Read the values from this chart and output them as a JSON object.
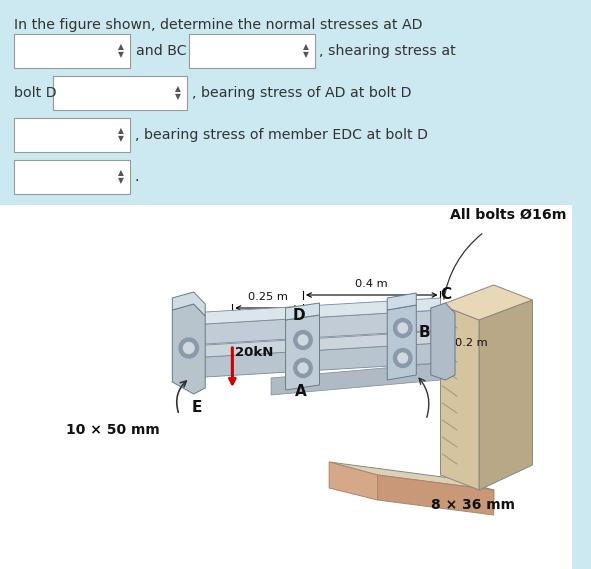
{
  "bg_color": "#cce8f0",
  "title_text": "In the figure shown, determine the normal stresses at AD",
  "line2_text": "and BC",
  "line2b_text": ", shearing stress at",
  "line3a_text": "bolt D",
  "line3b_text": ", bearing stress of AD at bolt D",
  "line4_text": ", bearing stress of member EDC at bolt D",
  "all_bolts_text": "All bolts Ø16m",
  "dim_04": "0.4 m",
  "dim_025": "0.25 m",
  "dim_02": "0.2 m",
  "force_text": "20kN",
  "label_A": "A",
  "label_B": "B",
  "label_C": "C",
  "label_D": "D",
  "label_E": "E",
  "section1_text": "10 × 50 mm",
  "section2_text": "8 × 36 mm"
}
